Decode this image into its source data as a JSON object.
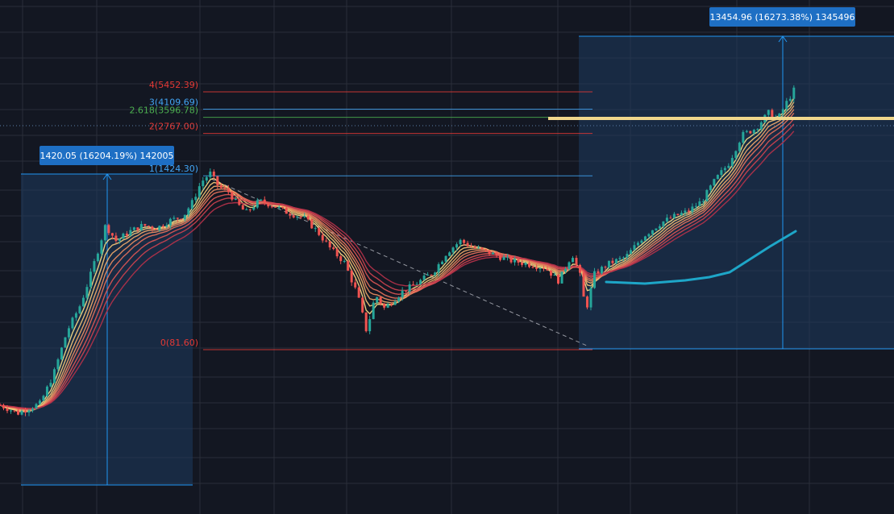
{
  "colors": {
    "background": "#131722",
    "grid": "#2a2e39",
    "up": "#26a69a",
    "down": "#ef5350",
    "measure_fill": "#1e3a5f",
    "measure_line": "#2196f3",
    "badge_bg": "#1e6fc4",
    "fib_red": "#e53935",
    "fib_blue": "#42a5f5",
    "fib_green": "#4caf50",
    "trend_dash": "#9598a1",
    "price_line": "#f0d78c",
    "long_ma": "#1ea6c8",
    "ribbon": [
      "#fbe08a",
      "#f8c979",
      "#f5ad6c",
      "#f08f62",
      "#ea725c",
      "#df5755",
      "#cf4250",
      "#b7324a"
    ]
  },
  "chart_data": {
    "type": "line",
    "scale": "log",
    "series_kind": "candlestick with EMA ribbon",
    "price_range": [
      25,
      30000
    ],
    "fib_levels": [
      {
        "label": "4(5452.39)",
        "ratio": 4,
        "price": 5452.39,
        "color": "red"
      },
      {
        "label": "3(4109.69)",
        "ratio": 3,
        "price": 4109.69,
        "color": "blue"
      },
      {
        "label": "2.618(3596.78)",
        "ratio": 2.618,
        "price": 3596.78,
        "color": "green"
      },
      {
        "label": "2(2767.00)",
        "ratio": 2,
        "price": 2767.0,
        "color": "red"
      },
      {
        "label": "1(1424.30)",
        "ratio": 1,
        "price": 1424.3,
        "color": "blue"
      },
      {
        "label": "0(81.60)",
        "ratio": 0,
        "price": 81.6,
        "color": "red"
      }
    ],
    "measurements": [
      {
        "label": "1420.05 (16204.19%) 142005",
        "change": 1420.05,
        "percent": 16204.19,
        "ticks": 142005
      },
      {
        "label": "13454.96 (16273.38%) 1345496",
        "change": 13454.96,
        "percent": 16273.38,
        "ticks": 1345496
      }
    ],
    "price_path": [
      [
        0,
        33
      ],
      [
        0.01,
        31
      ],
      [
        0.02,
        29
      ],
      [
        0.03,
        31
      ],
      [
        0.045,
        34
      ],
      [
        0.06,
        55
      ],
      [
        0.075,
        110
      ],
      [
        0.09,
        170
      ],
      [
        0.1,
        260
      ],
      [
        0.11,
        420
      ],
      [
        0.118,
        620
      ],
      [
        0.13,
        480
      ],
      [
        0.145,
        560
      ],
      [
        0.16,
        620
      ],
      [
        0.175,
        590
      ],
      [
        0.19,
        670
      ],
      [
        0.205,
        720
      ],
      [
        0.215,
        900
      ],
      [
        0.225,
        1250
      ],
      [
        0.235,
        1450
      ],
      [
        0.245,
        1150
      ],
      [
        0.255,
        1080
      ],
      [
        0.265,
        880
      ],
      [
        0.275,
        760
      ],
      [
        0.29,
        920
      ],
      [
        0.305,
        860
      ],
      [
        0.32,
        770
      ],
      [
        0.34,
        700
      ],
      [
        0.355,
        560
      ],
      [
        0.37,
        420
      ],
      [
        0.385,
        340
      ],
      [
        0.4,
        200
      ],
      [
        0.41,
        110
      ],
      [
        0.42,
        200
      ],
      [
        0.43,
        160
      ],
      [
        0.45,
        210
      ],
      [
        0.47,
        250
      ],
      [
        0.485,
        290
      ],
      [
        0.5,
        400
      ],
      [
        0.515,
        480
      ],
      [
        0.53,
        430
      ],
      [
        0.55,
        390
      ],
      [
        0.57,
        350
      ],
      [
        0.59,
        330
      ],
      [
        0.61,
        310
      ],
      [
        0.625,
        250
      ],
      [
        0.64,
        390
      ],
      [
        0.65,
        260
      ],
      [
        0.655,
        150
      ],
      [
        0.665,
        280
      ],
      [
        0.68,
        330
      ],
      [
        0.7,
        370
      ],
      [
        0.72,
        520
      ],
      [
        0.74,
        650
      ],
      [
        0.755,
        720
      ],
      [
        0.77,
        780
      ],
      [
        0.785,
        920
      ],
      [
        0.8,
        1300
      ],
      [
        0.815,
        1700
      ],
      [
        0.83,
        2700
      ],
      [
        0.845,
        3000
      ],
      [
        0.86,
        3900
      ],
      [
        0.87,
        3500
      ],
      [
        0.88,
        4600
      ],
      [
        0.888,
        5600
      ]
    ]
  }
}
